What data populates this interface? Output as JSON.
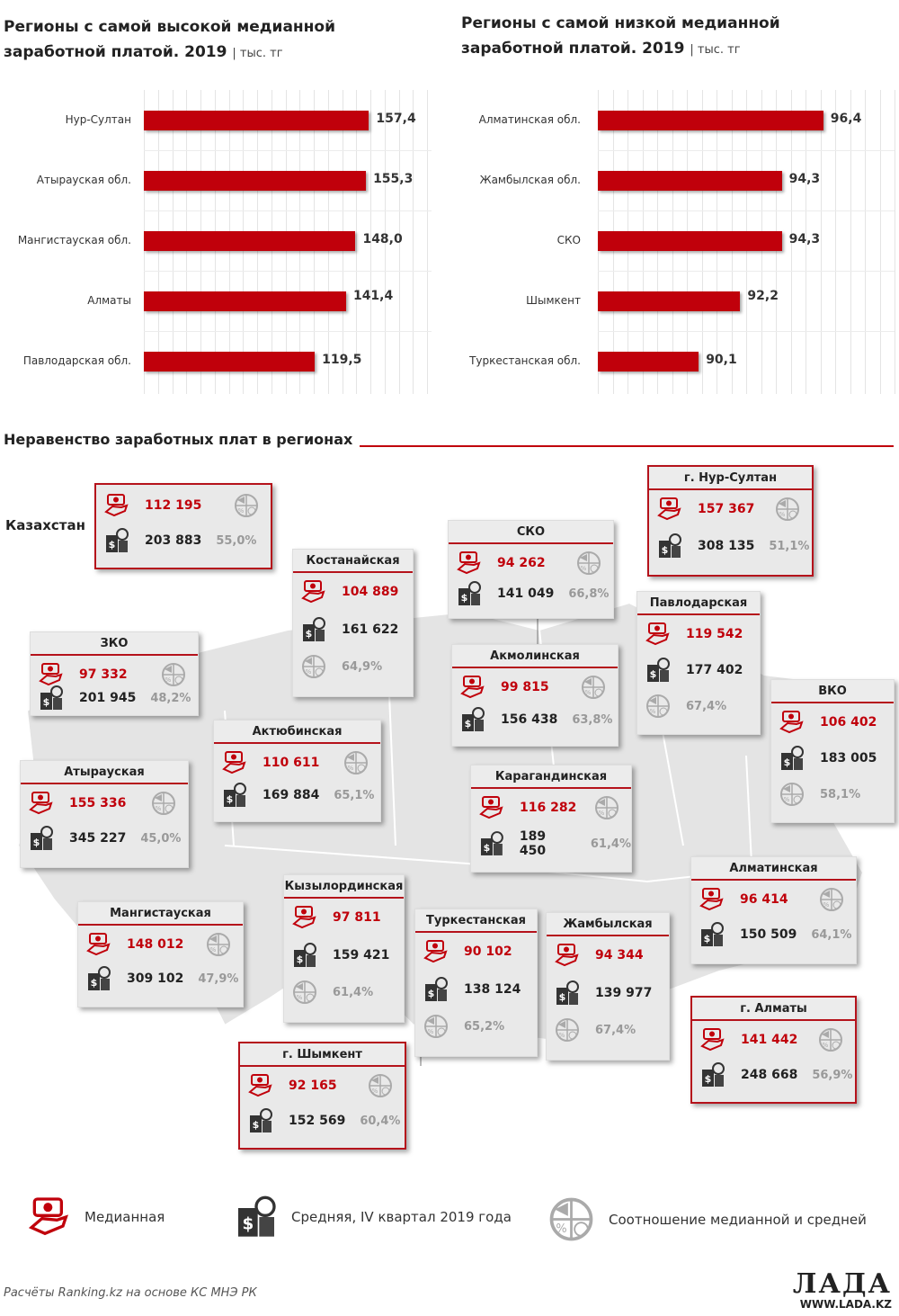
{
  "chart_data": [
    {
      "type": "bar",
      "orientation": "horizontal",
      "title": "Регионы с самой высокой медианной заработной платой. 2019",
      "unit": "| тыс. тг",
      "categories": [
        "Нур-Султан",
        "Атырауская обл.",
        "Мангистауская обл.",
        "Алматы",
        "Павлодарская обл."
      ],
      "values": [
        157.4,
        155.3,
        148.0,
        141.4,
        119.5
      ],
      "labels": [
        "157,4",
        "155,3",
        "148,0",
        "141,4",
        "119,5"
      ],
      "xlim": [
        0,
        198
      ],
      "color": "#c0000b"
    },
    {
      "type": "bar",
      "orientation": "horizontal",
      "title": "Регионы с самой низкой медианной заработной платой. 2019",
      "unit": "| тыс. тг",
      "categories": [
        "Алматинская обл.",
        "Жамбылская обл.",
        "СКО",
        "Шымкент",
        "Туркестанская обл."
      ],
      "values": [
        96.4,
        94.3,
        94.3,
        92.2,
        90.1
      ],
      "labels": [
        "96,4",
        "94,3",
        "94,3",
        "92,2",
        "90,1"
      ],
      "xlim": [
        85,
        100
      ],
      "color": "#c0000b"
    }
  ],
  "section_title": "Неравенство заработных плат в регионах",
  "country_label": "Казахстан",
  "regions": [
    {
      "name": "",
      "median": "112 195",
      "average": "203 883",
      "ratio": "55,0%"
    },
    {
      "name": "Костанайская",
      "median": "104 889",
      "average": "161 622",
      "ratio": "64,9%"
    },
    {
      "name": "ЗКО",
      "median": "97 332",
      "average": "201 945",
      "ratio": "48,2%"
    },
    {
      "name": "Актюбинская",
      "median": "110 611",
      "average": "169 884",
      "ratio": "65,1%"
    },
    {
      "name": "Атырауская",
      "median": "155 336",
      "average": "345 227",
      "ratio": "45,0%"
    },
    {
      "name": "СКО",
      "median": "94 262",
      "average": "141 049",
      "ratio": "66,8%"
    },
    {
      "name": "г. Нур-Султан",
      "median": "157 367",
      "average": "308 135",
      "ratio": "51,1%"
    },
    {
      "name": "Павлодарская",
      "median": "119 542",
      "average": "177 402",
      "ratio": "67,4%"
    },
    {
      "name": "Акмолинская",
      "median": "99 815",
      "average": "156 438",
      "ratio": "63,8%"
    },
    {
      "name": "ВКО",
      "median": "106 402",
      "average": "183 005",
      "ratio": "58,1%"
    },
    {
      "name": "Карагандинская",
      "median": "116 282",
      "average": "189 450",
      "ratio": "61,4%"
    },
    {
      "name": "Алматинская",
      "median": "96 414",
      "average": "150 509",
      "ratio": "64,1%"
    },
    {
      "name": "Мангистауская",
      "median": "148 012",
      "average": "309 102",
      "ratio": "47,9%"
    },
    {
      "name": "Кызылординская",
      "median": "97 811",
      "average": "159 421",
      "ratio": "61,4%"
    },
    {
      "name": "Туркестанская",
      "median": "90 102",
      "average": "138 124",
      "ratio": "65,2%"
    },
    {
      "name": "Жамбылская",
      "median": "94 344",
      "average": "139 977",
      "ratio": "67,4%"
    },
    {
      "name": "г. Алматы",
      "median": "141 442",
      "average": "248 668",
      "ratio": "56,9%"
    },
    {
      "name": "г. Шымкент",
      "median": "92 165",
      "average": "152 569",
      "ratio": "60,4%"
    }
  ],
  "legend": {
    "median": "Медианная",
    "average": "Средняя, IV квартал 2019 года",
    "ratio": "Соотношение медианной и средней"
  },
  "footer": {
    "source": "Расчёты Ranking.kz на основе КС МНЭ РК",
    "logo": "ЛАДА",
    "site": "WWW.LADA.KZ"
  }
}
